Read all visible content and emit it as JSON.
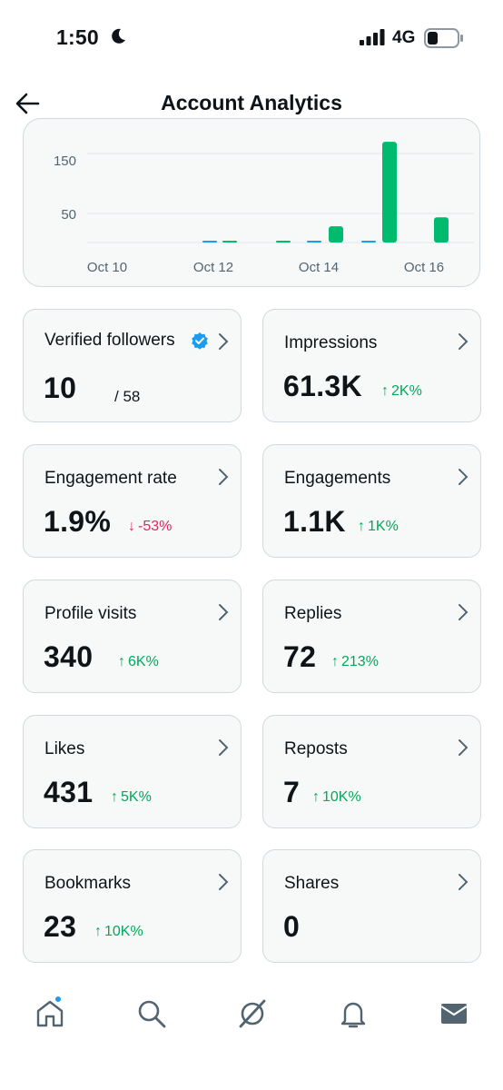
{
  "status_bar": {
    "time": "1:50",
    "network": "4G"
  },
  "header": {
    "title": "Account Analytics"
  },
  "chart_data": {
    "type": "bar",
    "y_ticks": [
      "150",
      "50"
    ],
    "x_labels": [
      "Oct 10",
      "Oct 12",
      "Oct 14",
      "Oct 16"
    ],
    "bar_color": "#00ba6e",
    "small_bar_color": "#1d9bf0",
    "bars": [
      {
        "day": "Oct 12",
        "value": 1,
        "color": "#1d9bf0"
      },
      {
        "day": "Oct 12b",
        "value": 2,
        "color": "#00ba6e"
      },
      {
        "day": "Oct 13",
        "value": 1,
        "color": "#00ba6e"
      },
      {
        "day": "Oct 14a",
        "value": 1,
        "color": "#1d9bf0"
      },
      {
        "day": "Oct 14",
        "value": 27,
        "color": "#00ba6e"
      },
      {
        "day": "Oct 15a",
        "value": 1,
        "color": "#1d9bf0"
      },
      {
        "day": "Oct 15",
        "value": 168,
        "color": "#00ba6e"
      },
      {
        "day": "Oct 16",
        "value": 42,
        "color": "#00ba6e"
      }
    ]
  },
  "stats": {
    "verified": {
      "label": "Verified followers",
      "value": "10",
      "total": "/ 58"
    },
    "impressions": {
      "label": "Impressions",
      "value": "61.3K",
      "change": "2K%"
    },
    "engagement_rate": {
      "label": "Engagement rate",
      "value": "1.9%",
      "change": "-53%"
    },
    "engagements": {
      "label": "Engagements",
      "value": "1.1K",
      "change": "1K%"
    },
    "profile_visits": {
      "label": "Profile visits",
      "value": "340",
      "change": "6K%"
    },
    "replies": {
      "label": "Replies",
      "value": "72",
      "change": "213%"
    },
    "likes": {
      "label": "Likes",
      "value": "431",
      "change": "5K%"
    },
    "reposts": {
      "label": "Reposts",
      "value": "7",
      "change": "10K%"
    },
    "bookmarks": {
      "label": "Bookmarks",
      "value": "23",
      "change": "10K%"
    },
    "shares": {
      "label": "Shares",
      "value": "0"
    }
  },
  "nav": [
    "home-icon",
    "search-icon",
    "grok-icon",
    "notifications-icon",
    "messages-icon"
  ]
}
